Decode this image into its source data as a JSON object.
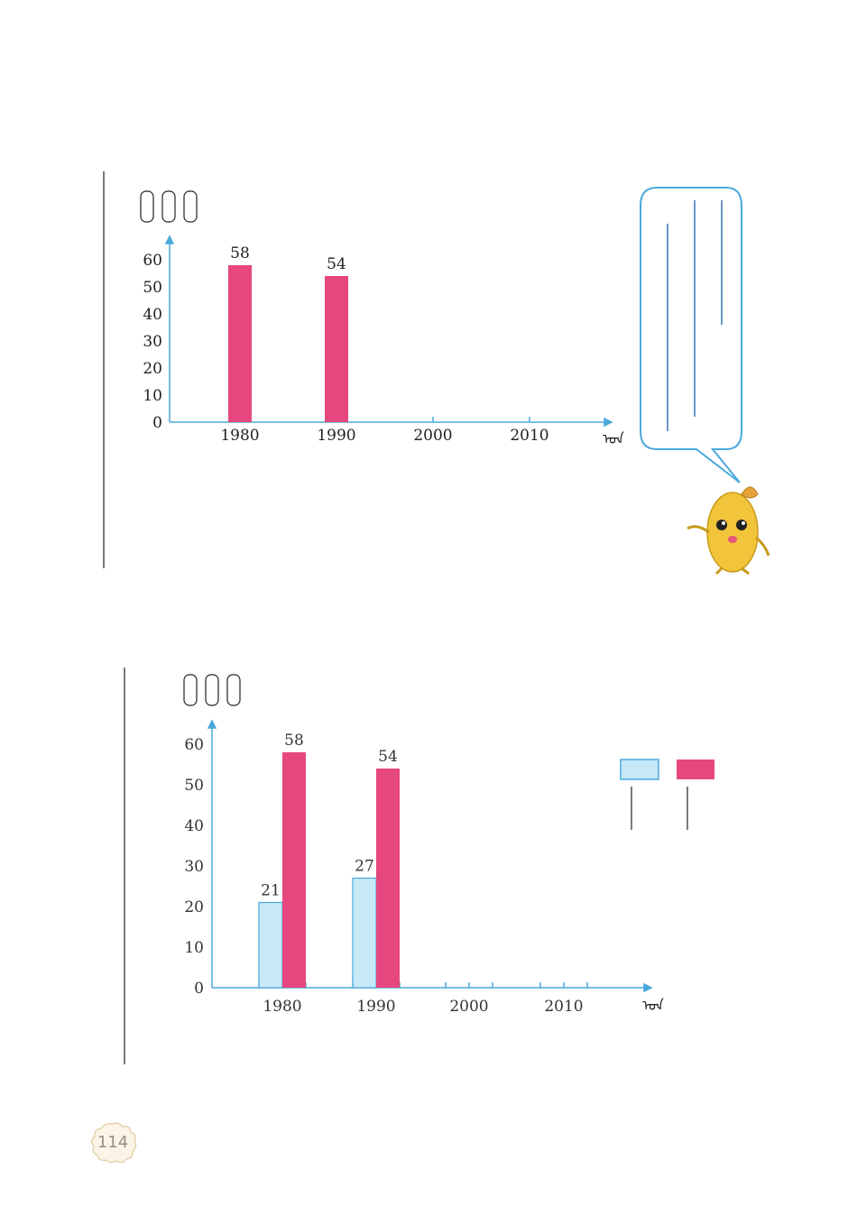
{
  "page": {
    "number": "114"
  },
  "colors": {
    "pink": "#e6477e",
    "light_blue": "#c7e8f7",
    "blue_line": "#4aa8dc",
    "bubble_text": "#1a5fb4"
  },
  "mascot": {
    "icon": "potato-mascot-icon"
  },
  "chart_data": [
    {
      "type": "bar",
      "categories": [
        "1980",
        "1990",
        "2000",
        "2010"
      ],
      "series": [
        {
          "values": [
            58,
            54,
            null,
            null
          ]
        }
      ],
      "yticks": [
        "0",
        "10",
        "20",
        "30",
        "40",
        "50",
        "60"
      ],
      "ylim": [
        0,
        60
      ]
    },
    {
      "type": "bar",
      "categories": [
        "1980",
        "1990",
        "2000",
        "2010"
      ],
      "series": [
        {
          "values": [
            21,
            27,
            null,
            null
          ]
        },
        {
          "values": [
            58,
            54,
            null,
            null
          ]
        }
      ],
      "yticks": [
        "0",
        "10",
        "20",
        "30",
        "40",
        "50",
        "60"
      ],
      "ylim": [
        0,
        60
      ],
      "legend": "right"
    }
  ]
}
